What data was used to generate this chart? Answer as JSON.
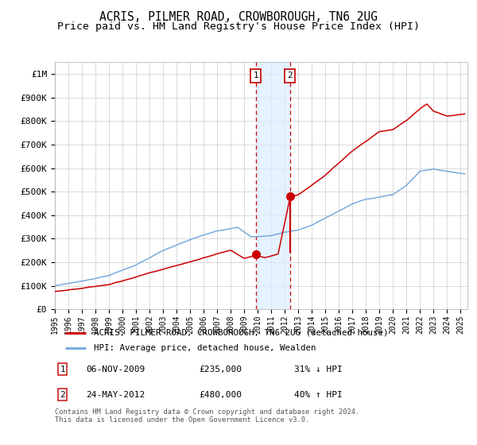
{
  "title": "ACRIS, PILMER ROAD, CROWBOROUGH, TN6 2UG",
  "subtitle": "Price paid vs. HM Land Registry's House Price Index (HPI)",
  "ylabel_ticks": [
    "£0",
    "£100K",
    "£200K",
    "£300K",
    "£400K",
    "£500K",
    "£600K",
    "£700K",
    "£800K",
    "£900K",
    "£1M"
  ],
  "ytick_values": [
    0,
    100000,
    200000,
    300000,
    400000,
    500000,
    600000,
    700000,
    800000,
    900000,
    1000000
  ],
  "ylim": [
    0,
    1050000
  ],
  "xlim_start": 1995.0,
  "xlim_end": 2025.5,
  "hpi_color": "#7aaadd",
  "price_color": "#cc0000",
  "transaction1_date": 2009.85,
  "transaction1_price": 235000,
  "transaction2_date": 2012.39,
  "transaction2_price": 480000,
  "shade_color": "#ddeeff",
  "legend_label_red": "ACRIS, PILMER ROAD, CROWBOROUGH, TN6 2UG (detached house)",
  "legend_label_blue": "HPI: Average price, detached house, Wealden",
  "ann1_text": "06-NOV-2009",
  "ann1_price": "£235,000",
  "ann1_hpi": "31% ↓ HPI",
  "ann2_text": "24-MAY-2012",
  "ann2_price": "£480,000",
  "ann2_hpi": "40% ↑ HPI",
  "footer": "Contains HM Land Registry data © Crown copyright and database right 2024.\nThis data is licensed under the Open Government Licence v3.0.",
  "background_color": "#ffffff",
  "grid_color": "#cccccc",
  "title_fontsize": 10.5,
  "subtitle_fontsize": 9.5
}
